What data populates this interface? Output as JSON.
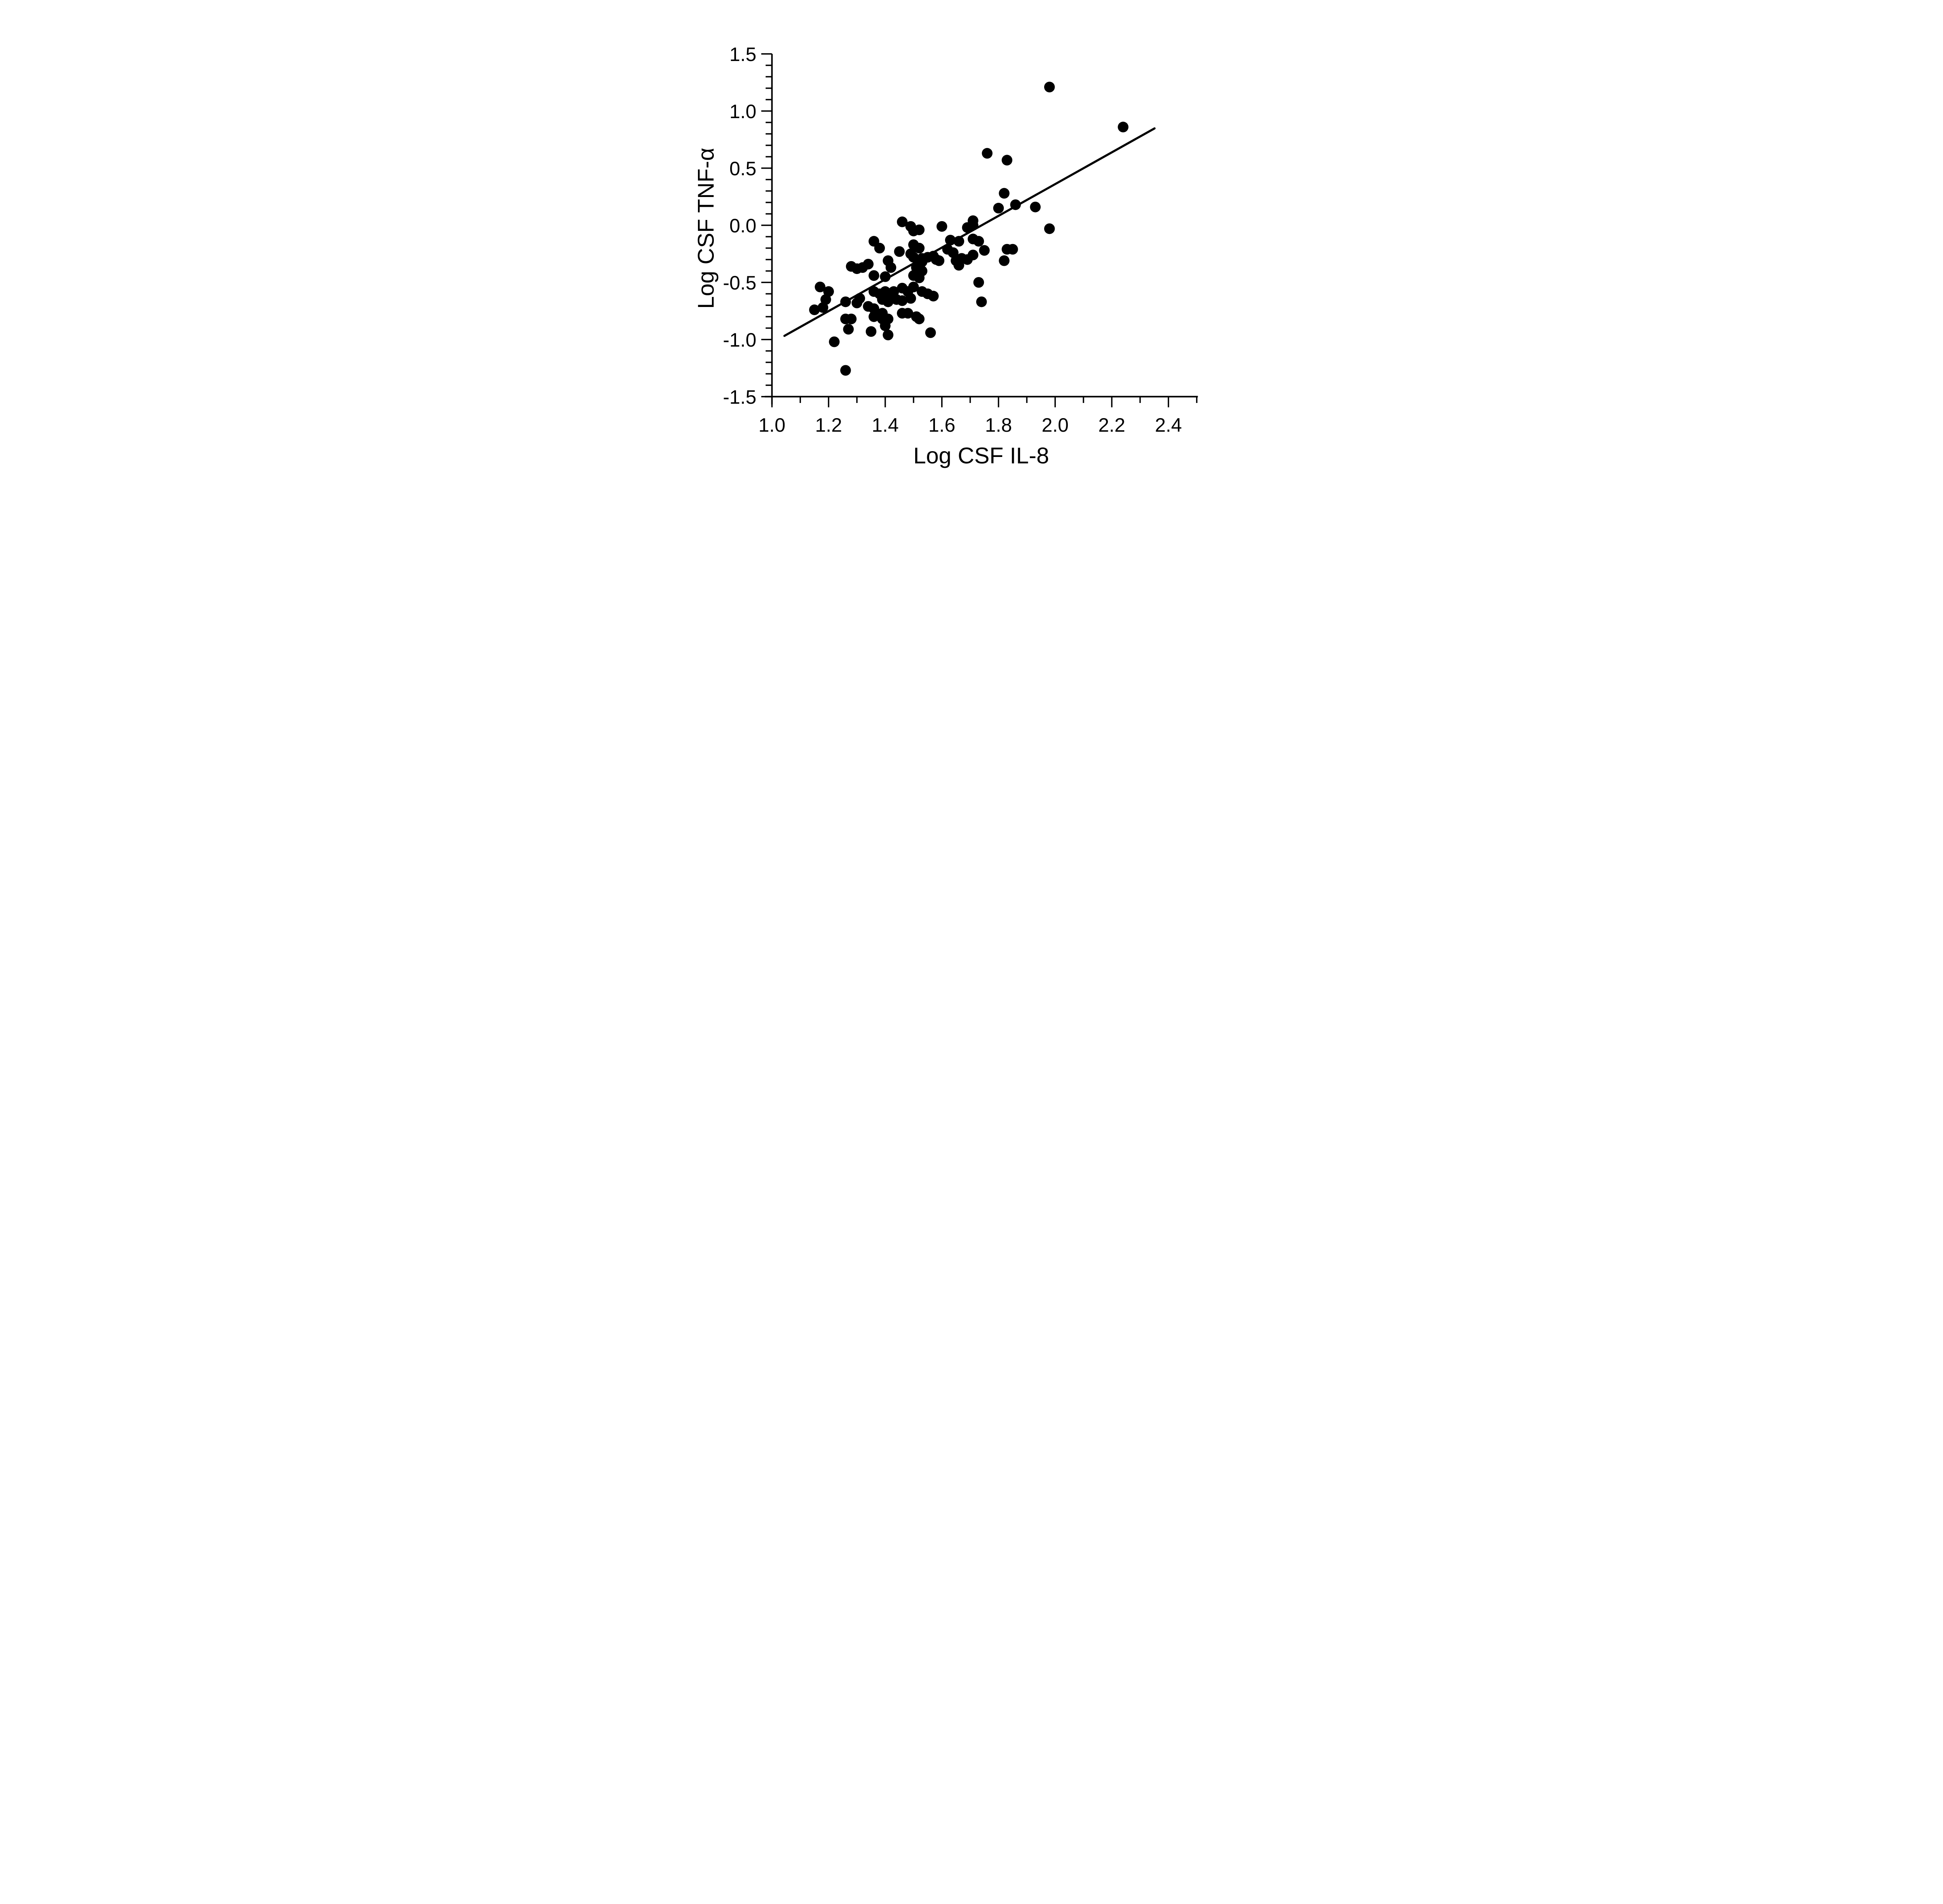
{
  "chart_data": {
    "type": "scatter",
    "title": "",
    "xlabel": "Log CSF IL-8",
    "ylabel": "Log CSF TNF-α",
    "xlim": [
      1.0,
      2.5
    ],
    "ylim": [
      -1.5,
      1.5
    ],
    "x_major_ticks": [
      1.0,
      1.2,
      1.4,
      1.6,
      1.8,
      2.0,
      2.2,
      2.4
    ],
    "x_major_tick_labels": [
      "1.0",
      "1.2",
      "1.4",
      "1.6",
      "1.8",
      "2.0",
      "2.2",
      "2.4"
    ],
    "x_minor_tick_step": 0.1,
    "y_major_ticks": [
      -1.5,
      -1.0,
      -0.5,
      0.0,
      0.5,
      1.0,
      1.5
    ],
    "y_major_tick_labels": [
      "-1.5",
      "-1.0",
      "-0.5",
      "0.0",
      "0.5",
      "1.0",
      "1.5"
    ],
    "y_minor_tick_step": 0.1,
    "grid": false,
    "legend": "none",
    "marker_color": "#000000",
    "line_color": "#000000",
    "fit_line": {
      "x1": 1.044,
      "y1": -0.968,
      "x2": 2.351,
      "y2": 0.848
    },
    "points": [
      [
        1.17,
        -0.54
      ],
      [
        1.2,
        -0.58
      ],
      [
        1.19,
        -0.65
      ],
      [
        1.18,
        -0.72
      ],
      [
        1.15,
        -0.74
      ],
      [
        1.28,
        -0.36
      ],
      [
        1.3,
        -0.38
      ],
      [
        1.26,
        -0.67
      ],
      [
        1.26,
        -0.82
      ],
      [
        1.28,
        -0.82
      ],
      [
        1.27,
        -0.91
      ],
      [
        1.22,
        -1.02
      ],
      [
        1.26,
        -1.27
      ],
      [
        1.35,
        -0.93
      ],
      [
        1.41,
        -0.96
      ],
      [
        1.56,
        -0.94
      ],
      [
        1.46,
        0.03
      ],
      [
        1.49,
        -0.01
      ],
      [
        1.36,
        -0.14
      ],
      [
        1.38,
        -0.2
      ],
      [
        1.45,
        -0.23
      ],
      [
        1.49,
        -0.25
      ],
      [
        1.34,
        -0.34
      ],
      [
        1.32,
        -0.37
      ],
      [
        1.41,
        -0.31
      ],
      [
        1.42,
        -0.37
      ],
      [
        1.36,
        -0.44
      ],
      [
        1.4,
        -0.45
      ],
      [
        1.36,
        -0.58
      ],
      [
        1.38,
        -0.6
      ],
      [
        1.4,
        -0.58
      ],
      [
        1.42,
        -0.6
      ],
      [
        1.43,
        -0.58
      ],
      [
        1.39,
        -0.65
      ],
      [
        1.41,
        -0.67
      ],
      [
        1.44,
        -0.65
      ],
      [
        1.46,
        -0.55
      ],
      [
        1.48,
        -0.58
      ],
      [
        1.5,
        -0.54
      ],
      [
        1.49,
        -0.64
      ],
      [
        1.31,
        -0.64
      ],
      [
        1.3,
        -0.68
      ],
      [
        1.34,
        -0.71
      ],
      [
        1.36,
        -0.73
      ],
      [
        1.36,
        -0.8
      ],
      [
        1.39,
        -0.77
      ],
      [
        1.39,
        -0.82
      ],
      [
        1.4,
        -0.88
      ],
      [
        1.41,
        -0.82
      ],
      [
        1.46,
        -0.66
      ],
      [
        1.46,
        -0.77
      ],
      [
        1.48,
        -0.77
      ],
      [
        1.5,
        -0.17
      ],
      [
        1.52,
        -0.2
      ],
      [
        1.5,
        -0.28
      ],
      [
        1.53,
        -0.29
      ],
      [
        1.53,
        -0.32
      ],
      [
        1.55,
        -0.28
      ],
      [
        1.51,
        -0.37
      ],
      [
        1.53,
        -0.4
      ],
      [
        1.5,
        -0.44
      ],
      [
        1.52,
        -0.46
      ],
      [
        1.58,
        -0.3
      ],
      [
        1.59,
        -0.31
      ],
      [
        1.57,
        -0.27
      ],
      [
        1.62,
        -0.21
      ],
      [
        1.64,
        -0.24
      ],
      [
        1.65,
        -0.31
      ],
      [
        1.67,
        -0.29
      ],
      [
        1.66,
        -0.35
      ],
      [
        1.69,
        -0.3
      ],
      [
        1.53,
        -0.58
      ],
      [
        1.55,
        -0.6
      ],
      [
        1.57,
        -0.62
      ],
      [
        1.51,
        -0.8
      ],
      [
        1.52,
        -0.82
      ],
      [
        1.76,
        0.63
      ],
      [
        1.83,
        0.57
      ],
      [
        1.82,
        0.28
      ],
      [
        1.8,
        0.15
      ],
      [
        1.86,
        0.18
      ],
      [
        1.71,
        0.04
      ],
      [
        1.71,
        0.0
      ],
      [
        1.69,
        -0.02
      ],
      [
        1.6,
        -0.01
      ],
      [
        1.52,
        -0.04
      ],
      [
        1.5,
        -0.05
      ],
      [
        1.63,
        -0.13
      ],
      [
        1.66,
        -0.14
      ],
      [
        1.71,
        -0.12
      ],
      [
        1.73,
        -0.14
      ],
      [
        1.71,
        -0.26
      ],
      [
        1.75,
        -0.22
      ],
      [
        1.73,
        -0.5
      ],
      [
        1.74,
        -0.67
      ],
      [
        1.83,
        -0.21
      ],
      [
        1.85,
        -0.21
      ],
      [
        1.82,
        -0.31
      ],
      [
        1.93,
        0.16
      ],
      [
        1.98,
        -0.03
      ],
      [
        1.98,
        1.21
      ],
      [
        2.24,
        0.86
      ]
    ]
  }
}
